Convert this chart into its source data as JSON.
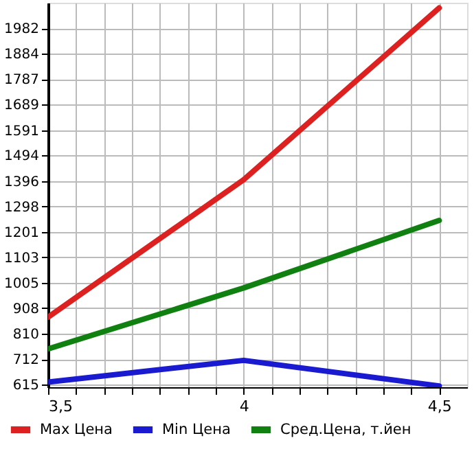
{
  "chart_data": {
    "type": "line",
    "x": [
      3.5,
      4,
      4.5
    ],
    "series": [
      {
        "name": "Max Цена",
        "color": "#dd2020",
        "values": [
          874,
          1401,
          2060
        ]
      },
      {
        "name": "Min Цена",
        "color": "#1a1ad0",
        "values": [
          625,
          708,
          610
        ]
      },
      {
        "name": "Сред.Цена, т.йен",
        "color": "#108010",
        "values": [
          752,
          986,
          1245
        ]
      }
    ],
    "xlim": [
      3.5,
      4.5714
    ],
    "xticks": [
      {
        "value": 3.5,
        "label": "3,5"
      },
      {
        "value": 3.5714,
        "label": null
      },
      {
        "value": 3.6429,
        "label": null
      },
      {
        "value": 3.7143,
        "label": null
      },
      {
        "value": 3.7857,
        "label": null
      },
      {
        "value": 3.8571,
        "label": null
      },
      {
        "value": 3.9286,
        "label": null
      },
      4,
      {
        "value": 4.0714,
        "label": null
      },
      {
        "value": 4.1429,
        "label": null
      },
      {
        "value": 4.2143,
        "label": null
      },
      {
        "value": 4.2857,
        "label": null
      },
      {
        "value": 4.3571,
        "label": null
      },
      {
        "value": 4.4286,
        "label": null
      },
      {
        "value": 4.5,
        "label": "4,5"
      }
    ],
    "ylim": [
      605,
      2080
    ],
    "yticks": [
      615,
      712,
      810,
      908,
      1005,
      1103,
      1201,
      1298,
      1396,
      1494,
      1591,
      1689,
      1787,
      1884,
      1982
    ],
    "grid": true,
    "legend": "bottom",
    "marker": "none",
    "line_style": "solid"
  }
}
